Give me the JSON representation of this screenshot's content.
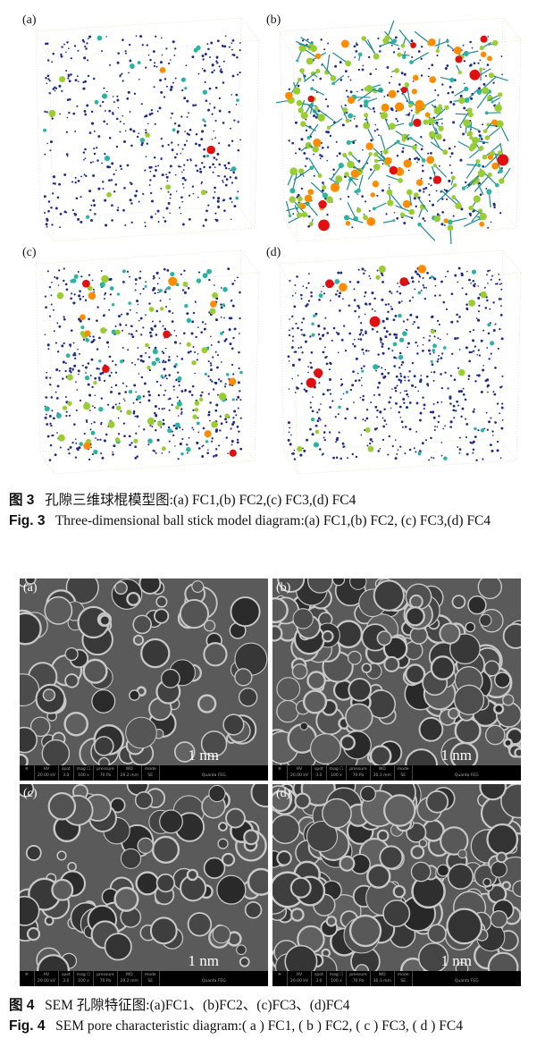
{
  "figure3": {
    "panels": [
      {
        "label": "(a)"
      },
      {
        "label": "(b)"
      },
      {
        "label": "(c)"
      },
      {
        "label": "(d)"
      }
    ],
    "caption_cn_prefix": "图 3",
    "caption_cn": "孔隙三维球棍模型图:(a) FC1,(b) FC2,(c) FC3,(d) FC4",
    "caption_en_prefix": "Fig. 3",
    "caption_en": "Three-dimensional ball stick model diagram:(a) FC1,(b) FC2, (c) FC3,(d) FC4",
    "colors": {
      "small": "#1e2a8a",
      "medium": "#2bb5a0",
      "large": "#9acd32",
      "xlarge": "#ff8c00",
      "max": "#e01010"
    }
  },
  "figure4": {
    "panels": [
      {
        "label": "(a)",
        "scale": "1 nm",
        "hv": "20.00 kV",
        "spot": "3.0",
        "mag": "100 x",
        "pressure": "70 Pa",
        "wd": "29.2 mm",
        "mode": "SE",
        "instrument": "Quanta FEG"
      },
      {
        "label": "(b)",
        "scale": "1 nm",
        "hv": "20.00 kV",
        "spot": "3.0",
        "mag": "100 x",
        "pressure": "70 Pa",
        "wd": "30.3 mm",
        "mode": "SE",
        "instrument": "Quanta FEG"
      },
      {
        "label": "(c)",
        "scale": "1 nm",
        "hv": "20.00 kV",
        "spot": "3.0",
        "mag": "100 x",
        "pressure": "70 Pa",
        "wd": "29.2 mm",
        "mode": "SE",
        "instrument": "Quanta FEG"
      },
      {
        "label": "(d)",
        "scale": "1 nm",
        "hv": "20.00 kV",
        "spot": "3.0",
        "mag": "100 x",
        "pressure": "70 Pa",
        "wd": "30.3 mm",
        "mode": "SE",
        "instrument": "Quanta FEG"
      }
    ],
    "bar_headers": {
      "hv": "HV",
      "spot": "spot",
      "mag": "mag ☐",
      "pressure": "pressure",
      "wd": "WD",
      "mode": "mode"
    },
    "caption_cn_prefix": "图 4",
    "caption_cn": "SEM 孔隙特征图:(a)FC1、(b)FC2、(c)FC3、(d)FC4",
    "caption_en_prefix": "Fig. 4",
    "caption_en": "SEM pore characteristic diagram:( a ) FC1, ( b ) FC2, ( c ) FC3, ( d ) FC4"
  }
}
